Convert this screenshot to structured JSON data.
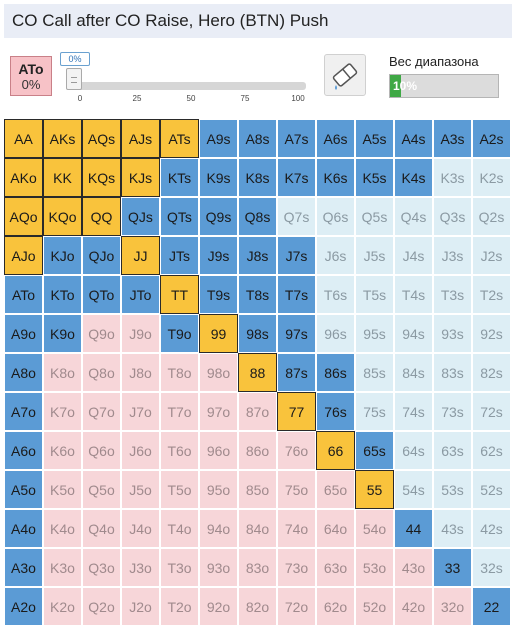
{
  "title": "CO Call after CO Raise, Hero (BTN) Push",
  "selected_hand": {
    "hand": "ATo",
    "percent": "0%"
  },
  "slider": {
    "value_label": "0%",
    "value": 0,
    "ticks": [
      "0",
      "25",
      "50",
      "75",
      "100"
    ]
  },
  "eraser": {
    "icon": "eraser-icon"
  },
  "range_weight": {
    "label": "Вес диапазона",
    "value_label": "10%",
    "fraction": 0.1
  },
  "colors": {
    "push": "#f9c33c",
    "call": "#5b9bd5",
    "fold_suited": "#ddeef5",
    "fold_offsuit": "#f7d6d9"
  },
  "grid": {
    "rows": [
      [
        "AA",
        "AKs",
        "AQs",
        "AJs",
        "ATs",
        "A9s",
        "A8s",
        "A7s",
        "A6s",
        "A5s",
        "A4s",
        "A3s",
        "A2s"
      ],
      [
        "AKo",
        "KK",
        "KQs",
        "KJs",
        "KTs",
        "K9s",
        "K8s",
        "K7s",
        "K6s",
        "K5s",
        "K4s",
        "K3s",
        "K2s"
      ],
      [
        "AQo",
        "KQo",
        "QQ",
        "QJs",
        "QTs",
        "Q9s",
        "Q8s",
        "Q7s",
        "Q6s",
        "Q5s",
        "Q4s",
        "Q3s",
        "Q2s"
      ],
      [
        "AJo",
        "KJo",
        "QJo",
        "JJ",
        "JTs",
        "J9s",
        "J8s",
        "J7s",
        "J6s",
        "J5s",
        "J4s",
        "J3s",
        "J2s"
      ],
      [
        "ATo",
        "KTo",
        "QTo",
        "JTo",
        "TT",
        "T9s",
        "T8s",
        "T7s",
        "T6s",
        "T5s",
        "T4s",
        "T3s",
        "T2s"
      ],
      [
        "A9o",
        "K9o",
        "Q9o",
        "J9o",
        "T9o",
        "99",
        "98s",
        "97s",
        "96s",
        "95s",
        "94s",
        "93s",
        "92s"
      ],
      [
        "A8o",
        "K8o",
        "Q8o",
        "J8o",
        "T8o",
        "98o",
        "88",
        "87s",
        "86s",
        "85s",
        "84s",
        "83s",
        "82s"
      ],
      [
        "A7o",
        "K7o",
        "Q7o",
        "J7o",
        "T7o",
        "97o",
        "87o",
        "77",
        "76s",
        "75s",
        "74s",
        "73s",
        "72s"
      ],
      [
        "A6o",
        "K6o",
        "Q6o",
        "J6o",
        "T6o",
        "96o",
        "86o",
        "76o",
        "66",
        "65s",
        "64s",
        "63s",
        "62s"
      ],
      [
        "A5o",
        "K5o",
        "Q5o",
        "J5o",
        "T5o",
        "95o",
        "85o",
        "75o",
        "65o",
        "55",
        "54s",
        "53s",
        "52s"
      ],
      [
        "A4o",
        "K4o",
        "Q4o",
        "J4o",
        "T4o",
        "94o",
        "84o",
        "74o",
        "64o",
        "54o",
        "44",
        "43s",
        "42s"
      ],
      [
        "A3o",
        "K3o",
        "Q3o",
        "J3o",
        "T3o",
        "93o",
        "83o",
        "73o",
        "63o",
        "53o",
        "43o",
        "33",
        "32s"
      ],
      [
        "A2o",
        "K2o",
        "Q2o",
        "J2o",
        "T2o",
        "92o",
        "82o",
        "72o",
        "62o",
        "52o",
        "42o",
        "32o",
        "22"
      ]
    ],
    "states": [
      [
        "push",
        "push",
        "push",
        "push",
        "push",
        "call",
        "call",
        "call",
        "call",
        "call",
        "call",
        "call",
        "call"
      ],
      [
        "push",
        "push",
        "push",
        "push",
        "call",
        "call",
        "call",
        "call",
        "call",
        "call",
        "call",
        "fold-s",
        "fold-s"
      ],
      [
        "push",
        "push",
        "push",
        "call",
        "call",
        "call",
        "call",
        "fold-s",
        "fold-s",
        "fold-s",
        "fold-s",
        "fold-s",
        "fold-s"
      ],
      [
        "push",
        "call",
        "call",
        "push",
        "call",
        "call",
        "call",
        "call",
        "fold-s",
        "fold-s",
        "fold-s",
        "fold-s",
        "fold-s"
      ],
      [
        "call",
        "call",
        "call",
        "call",
        "push",
        "call",
        "call",
        "call",
        "fold-s",
        "fold-s",
        "fold-s",
        "fold-s",
        "fold-s"
      ],
      [
        "call",
        "call",
        "fold-o",
        "fold-o",
        "call",
        "push",
        "call",
        "call",
        "fold-s",
        "fold-s",
        "fold-s",
        "fold-s",
        "fold-s"
      ],
      [
        "call",
        "fold-o",
        "fold-o",
        "fold-o",
        "fold-o",
        "fold-o",
        "push",
        "call",
        "call",
        "fold-s",
        "fold-s",
        "fold-s",
        "fold-s"
      ],
      [
        "call",
        "fold-o",
        "fold-o",
        "fold-o",
        "fold-o",
        "fold-o",
        "fold-o",
        "push",
        "call",
        "fold-s",
        "fold-s",
        "fold-s",
        "fold-s"
      ],
      [
        "call",
        "fold-o",
        "fold-o",
        "fold-o",
        "fold-o",
        "fold-o",
        "fold-o",
        "fold-o",
        "push",
        "call",
        "fold-s",
        "fold-s",
        "fold-s"
      ],
      [
        "call",
        "fold-o",
        "fold-o",
        "fold-o",
        "fold-o",
        "fold-o",
        "fold-o",
        "fold-o",
        "fold-o",
        "push",
        "fold-s",
        "fold-s",
        "fold-s"
      ],
      [
        "call",
        "fold-o",
        "fold-o",
        "fold-o",
        "fold-o",
        "fold-o",
        "fold-o",
        "fold-o",
        "fold-o",
        "fold-o",
        "call",
        "fold-s",
        "fold-s"
      ],
      [
        "call",
        "fold-o",
        "fold-o",
        "fold-o",
        "fold-o",
        "fold-o",
        "fold-o",
        "fold-o",
        "fold-o",
        "fold-o",
        "fold-o",
        "call",
        "fold-s"
      ],
      [
        "call",
        "fold-o",
        "fold-o",
        "fold-o",
        "fold-o",
        "fold-o",
        "fold-o",
        "fold-o",
        "fold-o",
        "fold-o",
        "fold-o",
        "fold-o",
        "call"
      ]
    ]
  }
}
